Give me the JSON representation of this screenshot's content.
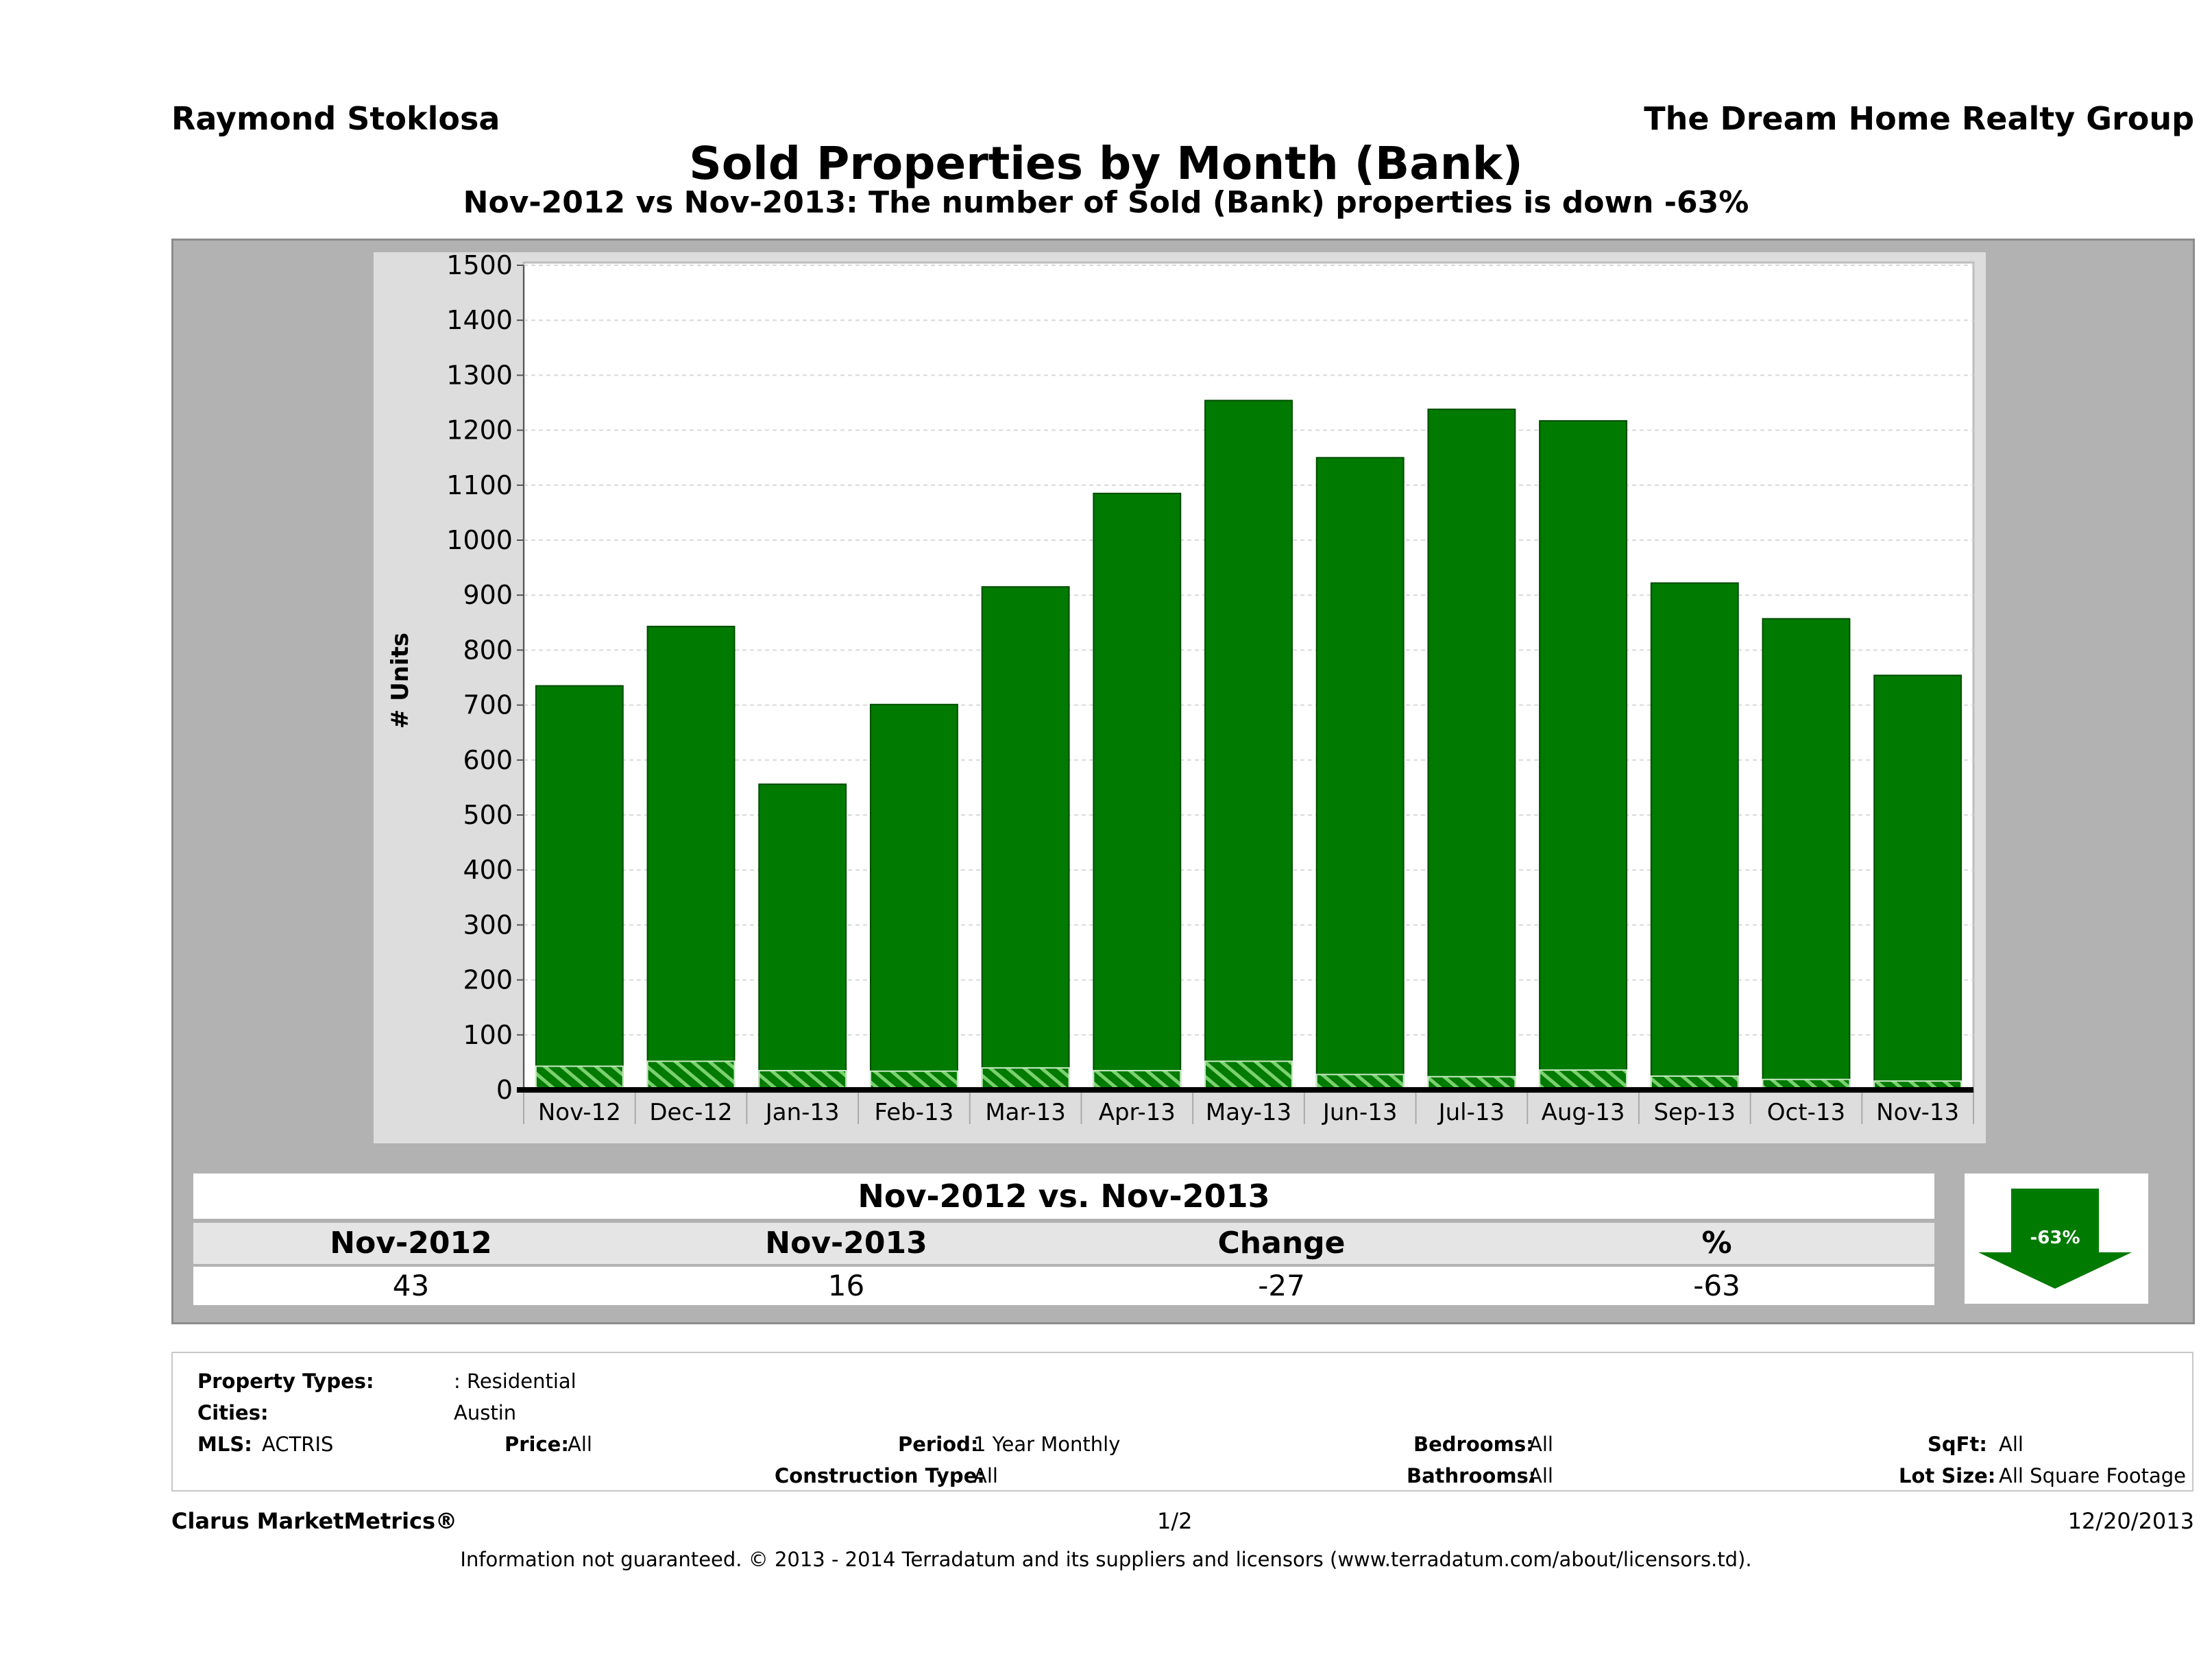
{
  "header": {
    "agent": "Raymond Stoklosa",
    "company": "The Dream Home Realty Group",
    "title": "Sold Properties by Month (Bank)",
    "subtitle": "Nov-2012 vs Nov-2013: The number of Sold (Bank)  properties is down -63%"
  },
  "chart_data": {
    "type": "bar",
    "categories": [
      "Nov-12",
      "Dec-12",
      "Jan-13",
      "Feb-13",
      "Mar-13",
      "Apr-13",
      "May-13",
      "Jun-13",
      "Jul-13",
      "Aug-13",
      "Sep-13",
      "Oct-13",
      "Nov-13"
    ],
    "series": [
      {
        "values": [
          735,
          843,
          556,
          701,
          915,
          1085,
          1254,
          1150,
          1238,
          1217,
          922,
          857,
          754
        ]
      },
      {
        "values": [
          43,
          52,
          35,
          34,
          40,
          35,
          52,
          28,
          24,
          36,
          25,
          19,
          16
        ]
      }
    ],
    "xlabel": "",
    "ylabel": "# Units",
    "ylim": [
      0,
      1500
    ],
    "yticks": [
      0,
      100,
      200,
      300,
      400,
      500,
      600,
      700,
      800,
      900,
      1000,
      1100,
      1200,
      1300,
      1400,
      1500
    ],
    "grid": true,
    "colors": {
      "bar": "#007a00",
      "bar_edge": "#004d00",
      "hatch": "#7bd06f"
    }
  },
  "comparison": {
    "title": "Nov-2012 vs. Nov-2013",
    "headers": [
      "Nov-2012",
      "Nov-2013",
      "Change",
      "%"
    ],
    "values": [
      "43",
      "16",
      "-27",
      "-63"
    ],
    "badge": "-63%",
    "badge_color": "#007a00"
  },
  "info": {
    "property_types_label": "Property Types:",
    "property_types_value": ": Residential",
    "cities_label": "Cities:",
    "cities_value": "Austin",
    "mls_label": "MLS:",
    "mls_value": "ACTRIS",
    "price_label": "Price:",
    "price_value": "All",
    "period_label": "Period:",
    "period_value": "1 Year Monthly",
    "construction_label": "Construction Type:",
    "construction_value": "All",
    "bedrooms_label": "Bedrooms:",
    "bedrooms_value": "All",
    "bathrooms_label": "Bathrooms:",
    "bathrooms_value": "All",
    "sqft_label": "SqFt:",
    "sqft_value": "All",
    "lotsize_label": "Lot Size:",
    "lotsize_value": "All Square Footage"
  },
  "footer": {
    "brand": "Clarus MarketMetrics®",
    "page": "1/2",
    "date": "12/20/2013",
    "disclaimer": "Information not guaranteed. © 2013 - 2014 Terradatum and its suppliers and licensors (www.terradatum.com/about/licensors.td)."
  }
}
